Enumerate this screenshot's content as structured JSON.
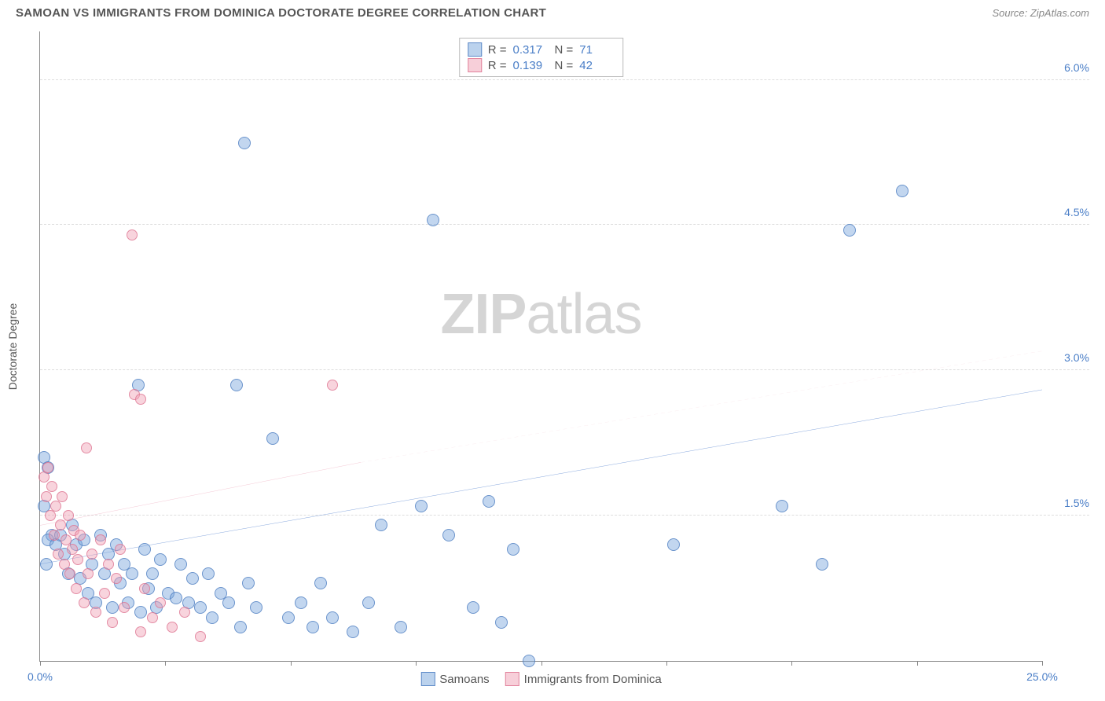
{
  "header": {
    "title": "SAMOAN VS IMMIGRANTS FROM DOMINICA DOCTORATE DEGREE CORRELATION CHART",
    "source": "Source: ZipAtlas.com"
  },
  "watermark": {
    "part1": "ZIP",
    "part2": "atlas"
  },
  "chart": {
    "type": "scatter",
    "y_axis_label": "Doctorate Degree",
    "xlim": [
      0,
      25
    ],
    "ylim": [
      0,
      6.5
    ],
    "x_ticks": [
      0,
      3.125,
      6.25,
      9.375,
      12.5,
      15.625,
      18.75,
      21.875,
      25
    ],
    "x_tick_labels": {
      "0": "0.0%",
      "25": "25.0%"
    },
    "y_gridlines": [
      1.5,
      3.0,
      4.5,
      6.0
    ],
    "y_tick_labels": {
      "1.5": "1.5%",
      "3.0": "3.0%",
      "4.5": "4.5%",
      "6.0": "6.0%"
    },
    "background_color": "#ffffff",
    "grid_color": "#dddddd",
    "axis_color": "#888888",
    "tick_label_color": "#4a7ec7",
    "series": [
      {
        "name": "Samoans",
        "color_fill": "rgba(120,165,220,0.45)",
        "color_stroke": "rgba(70,120,190,0.7)",
        "marker_size": 16,
        "R": "0.317",
        "N": "71",
        "trend": {
          "x1": 0,
          "y1": 1.0,
          "x2": 25,
          "y2": 2.8,
          "color": "#3a6fc7",
          "width": 2.5,
          "dash": "none"
        },
        "points": [
          [
            0.1,
            2.1
          ],
          [
            0.2,
            2.0
          ],
          [
            0.1,
            1.6
          ],
          [
            0.3,
            1.3
          ],
          [
            0.2,
            1.25
          ],
          [
            0.4,
            1.2
          ],
          [
            0.15,
            1.0
          ],
          [
            0.5,
            1.3
          ],
          [
            0.6,
            1.1
          ],
          [
            0.7,
            0.9
          ],
          [
            0.8,
            1.4
          ],
          [
            0.9,
            1.2
          ],
          [
            1.0,
            0.85
          ],
          [
            1.1,
            1.25
          ],
          [
            1.2,
            0.7
          ],
          [
            1.3,
            1.0
          ],
          [
            1.4,
            0.6
          ],
          [
            1.5,
            1.3
          ],
          [
            1.6,
            0.9
          ],
          [
            1.7,
            1.1
          ],
          [
            1.8,
            0.55
          ],
          [
            1.9,
            1.2
          ],
          [
            2.0,
            0.8
          ],
          [
            2.1,
            1.0
          ],
          [
            2.2,
            0.6
          ],
          [
            2.3,
            0.9
          ],
          [
            2.45,
            2.85
          ],
          [
            2.5,
            0.5
          ],
          [
            2.6,
            1.15
          ],
          [
            2.7,
            0.75
          ],
          [
            2.8,
            0.9
          ],
          [
            2.9,
            0.55
          ],
          [
            3.0,
            1.05
          ],
          [
            3.2,
            0.7
          ],
          [
            3.4,
            0.65
          ],
          [
            3.5,
            1.0
          ],
          [
            3.7,
            0.6
          ],
          [
            3.8,
            0.85
          ],
          [
            4.0,
            0.55
          ],
          [
            4.2,
            0.9
          ],
          [
            4.3,
            0.45
          ],
          [
            4.5,
            0.7
          ],
          [
            4.7,
            0.6
          ],
          [
            4.9,
            2.85
          ],
          [
            5.0,
            0.35
          ],
          [
            5.2,
            0.8
          ],
          [
            5.4,
            0.55
          ],
          [
            5.1,
            5.35
          ],
          [
            5.8,
            2.3
          ],
          [
            6.2,
            0.45
          ],
          [
            6.5,
            0.6
          ],
          [
            6.8,
            0.35
          ],
          [
            7.0,
            0.8
          ],
          [
            7.3,
            0.45
          ],
          [
            7.8,
            0.3
          ],
          [
            8.2,
            0.6
          ],
          [
            8.5,
            1.4
          ],
          [
            9.0,
            0.35
          ],
          [
            9.5,
            1.6
          ],
          [
            9.8,
            4.55
          ],
          [
            10.2,
            1.3
          ],
          [
            10.8,
            0.55
          ],
          [
            11.2,
            1.65
          ],
          [
            11.5,
            0.4
          ],
          [
            11.8,
            1.15
          ],
          [
            12.2,
            0.0
          ],
          [
            15.8,
            1.2
          ],
          [
            18.5,
            1.6
          ],
          [
            19.5,
            1.0
          ],
          [
            20.2,
            4.45
          ],
          [
            21.5,
            4.85
          ]
        ]
      },
      {
        "name": "Immigrants from Dominica",
        "color_fill": "rgba(240,160,180,0.45)",
        "color_stroke": "rgba(220,110,140,0.7)",
        "marker_size": 14,
        "R": "0.139",
        "N": "42",
        "trend_solid": {
          "x1": 0,
          "y1": 1.4,
          "x2": 8,
          "y2": 2.05,
          "color": "#e890a8",
          "width": 2,
          "dash": "none"
        },
        "trend_dashed": {
          "x1": 8,
          "y1": 2.05,
          "x2": 25,
          "y2": 3.2,
          "color": "#f0b5c5",
          "width": 1,
          "dash": "5,4"
        },
        "points": [
          [
            0.1,
            1.9
          ],
          [
            0.15,
            1.7
          ],
          [
            0.2,
            2.0
          ],
          [
            0.25,
            1.5
          ],
          [
            0.3,
            1.8
          ],
          [
            0.35,
            1.3
          ],
          [
            0.4,
            1.6
          ],
          [
            0.45,
            1.1
          ],
          [
            0.5,
            1.4
          ],
          [
            0.55,
            1.7
          ],
          [
            0.6,
            1.0
          ],
          [
            0.65,
            1.25
          ],
          [
            0.7,
            1.5
          ],
          [
            0.75,
            0.9
          ],
          [
            0.8,
            1.15
          ],
          [
            0.85,
            1.35
          ],
          [
            0.9,
            0.75
          ],
          [
            0.95,
            1.05
          ],
          [
            1.0,
            1.3
          ],
          [
            1.1,
            0.6
          ],
          [
            1.15,
            2.2
          ],
          [
            1.2,
            0.9
          ],
          [
            1.3,
            1.1
          ],
          [
            1.4,
            0.5
          ],
          [
            1.5,
            1.25
          ],
          [
            1.6,
            0.7
          ],
          [
            1.7,
            1.0
          ],
          [
            1.8,
            0.4
          ],
          [
            1.9,
            0.85
          ],
          [
            2.0,
            1.15
          ],
          [
            2.1,
            0.55
          ],
          [
            2.3,
            4.4
          ],
          [
            2.35,
            2.75
          ],
          [
            2.5,
            0.3
          ],
          [
            2.5,
            2.7
          ],
          [
            2.6,
            0.75
          ],
          [
            2.8,
            0.45
          ],
          [
            3.0,
            0.6
          ],
          [
            3.3,
            0.35
          ],
          [
            3.6,
            0.5
          ],
          [
            4.0,
            0.25
          ],
          [
            7.3,
            2.85
          ]
        ]
      }
    ],
    "bottom_legend": [
      {
        "label": "Samoans",
        "swatch": "blue"
      },
      {
        "label": "Immigrants from Dominica",
        "swatch": "pink"
      }
    ]
  }
}
